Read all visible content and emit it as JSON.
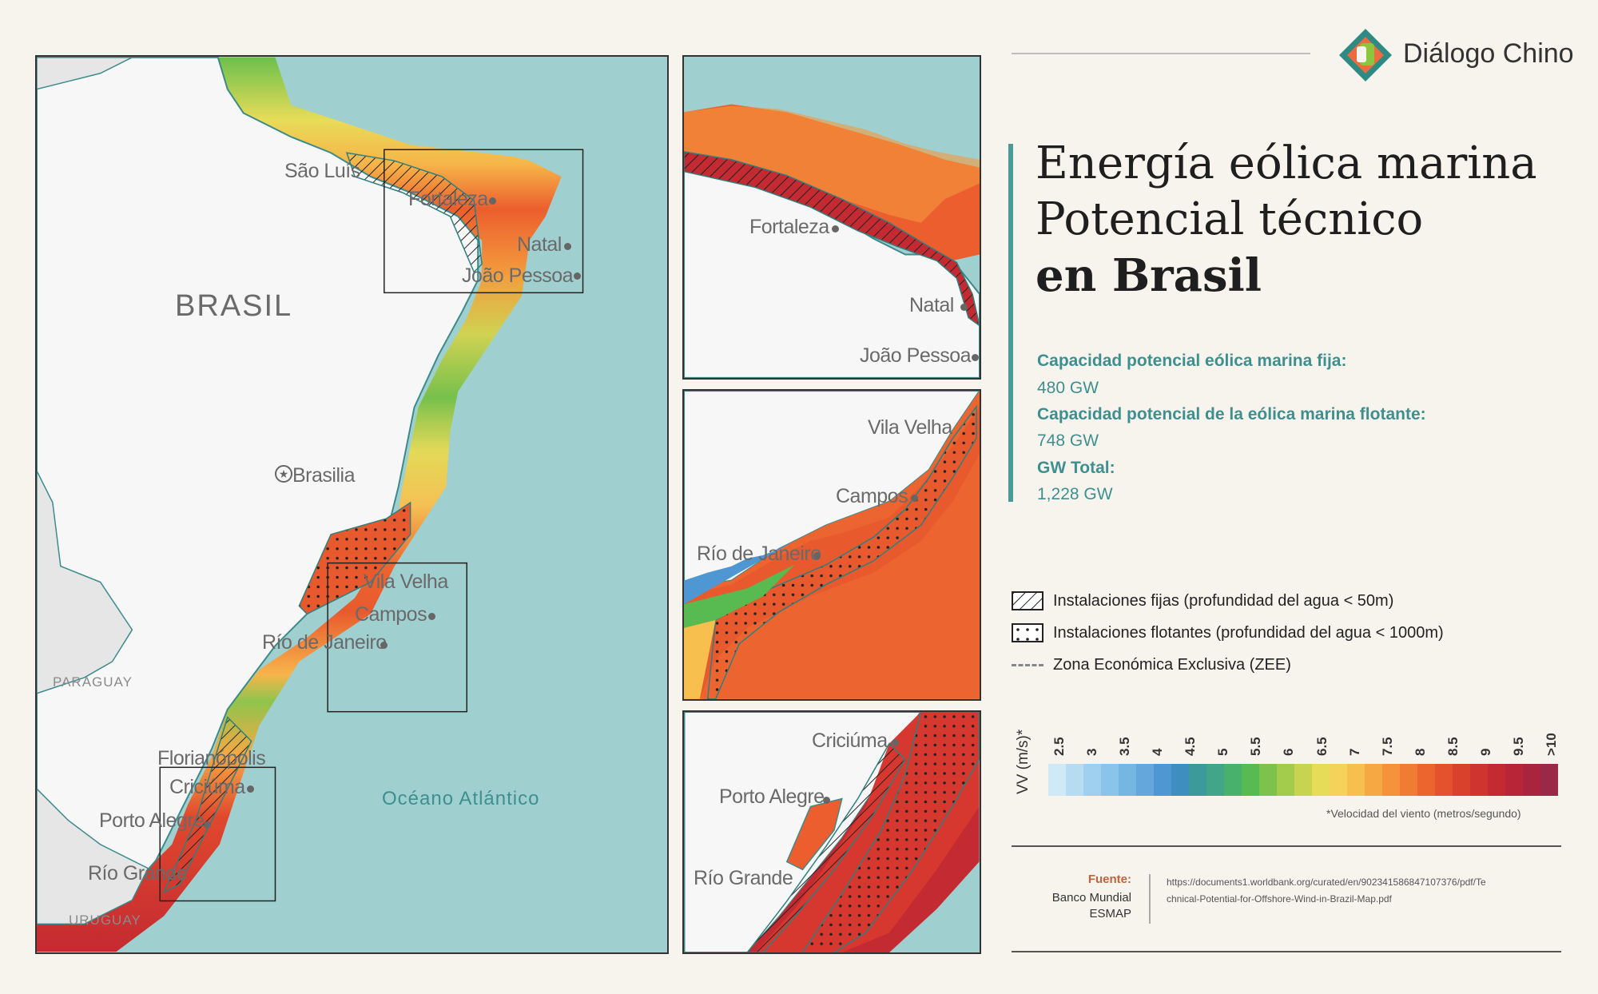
{
  "logo": {
    "name": "Diálogo Chino",
    "icon": "dialogo-chino-logo-icon"
  },
  "title": {
    "line1": "Energía eólica marina",
    "line2": "Potencial técnico",
    "line3": "en Brasil"
  },
  "stats": [
    {
      "label": "Capacidad potencial eólica marina fija:",
      "value": "480 GW"
    },
    {
      "label": "Capacidad potencial de la eólica marina flotante:",
      "value": "748 GW"
    },
    {
      "label": "GW Total:",
      "value": "1,228 GW"
    }
  ],
  "legend": {
    "fixed": "Instalaciones fijas (profundidad del agua < 50m)",
    "floating": "Instalaciones flotantes (profundidad del agua < 1000m)",
    "eez": "Zona Económica Exclusiva (ZEE)"
  },
  "scale": {
    "title": "VV (m/s)*",
    "ticks": [
      "2.5",
      "3",
      "3.5",
      "4",
      "4.5",
      "5",
      "5.5",
      "6",
      "6.5",
      "7",
      "7.5",
      "8",
      "8.5",
      "9",
      "9.5",
      ">10"
    ],
    "colors": [
      "#cfe9f7",
      "#b7dcf2",
      "#9fd0ef",
      "#8ac4ea",
      "#75b6e3",
      "#63a7dc",
      "#4f97d2",
      "#3f8ec0",
      "#3d9a9a",
      "#41a58a",
      "#48b16b",
      "#57bb52",
      "#7cc24c",
      "#a3cb4c",
      "#c7d450",
      "#e6dc58",
      "#f5d35a",
      "#f7bf4e",
      "#f6a943",
      "#f4933b",
      "#f07b33",
      "#ec652e",
      "#e4522d",
      "#da412d",
      "#cf352e",
      "#c42a31",
      "#b82536",
      "#a9253d",
      "#9a2948"
    ],
    "footnote": "*Velocidad del viento (metros/segundo)"
  },
  "source": {
    "label": "Fuente:",
    "org": "Banco Mundial ESMAP",
    "url": "https://documents1.worldbank.org/curated/en/902341586847107376/pdf/Technical-Potential-for-Offshore-Wind-in-Brazil-Map.pdf"
  },
  "map": {
    "country": "BRASIL",
    "ocean": "Océano Atlántico",
    "capital": "Brasilia",
    "neighbors": [
      "PARAGUAY",
      "URUGUAY"
    ],
    "cities": [
      "São Luís",
      "Fortaleza",
      "Natal",
      "João Pessoa",
      "Vila Velha",
      "Campos",
      "Río de Janeiro",
      "Florianópolis",
      "Criciúma",
      "Porto Alegre",
      "Río Grande"
    ]
  },
  "insets": {
    "north": [
      "Fortaleza",
      "Natal",
      "João Pessoa"
    ],
    "southeast": [
      "Vila Velha",
      "Campos",
      "Río de Janeiro"
    ],
    "south": [
      "Criciúma",
      "Porto Alegre",
      "Río Grande"
    ]
  }
}
